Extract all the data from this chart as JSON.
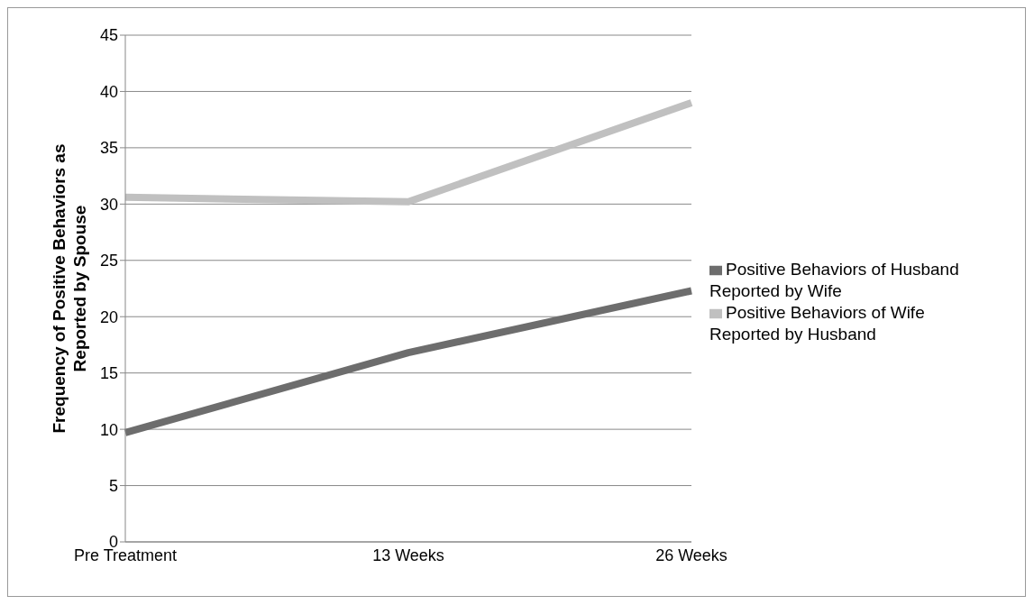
{
  "chart_data": {
    "type": "line",
    "ylabel": "Frequency of Positive Behaviors as Reported by Spouse",
    "categories": [
      "Pre Treatment",
      "13 Weeks",
      "26 Weeks"
    ],
    "series": [
      {
        "name": "Positive Behaviors of Husband Reported by Wife",
        "color": "#6d6d6d",
        "values": [
          9.7,
          16.8,
          22.3
        ]
      },
      {
        "name": "Positive Behaviors of Wife Reported by Husband",
        "color": "#c0c0c0",
        "values": [
          30.6,
          30.2,
          39.0
        ]
      }
    ],
    "ylim": [
      0,
      45
    ],
    "yticks": [
      0,
      5,
      10,
      15,
      20,
      25,
      30,
      35,
      40,
      45
    ],
    "grid": "y",
    "legend": "right",
    "marker": "none",
    "line_style": "solid"
  }
}
